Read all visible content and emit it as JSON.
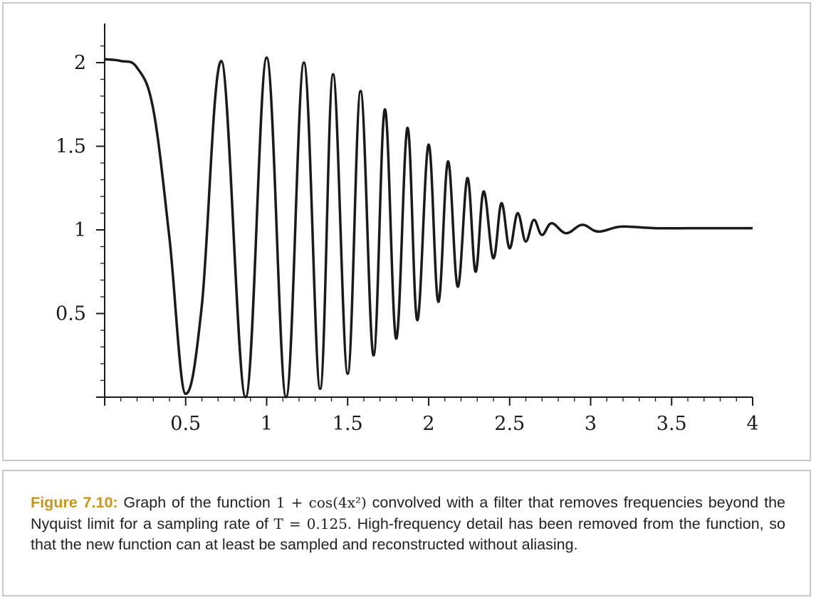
{
  "chart_data": {
    "type": "line",
    "title": "",
    "xlabel": "",
    "ylabel": "",
    "xlim": [
      0,
      4
    ],
    "ylim": [
      0,
      2.2
    ],
    "x_ticks": [
      "0.5",
      "1",
      "1.5",
      "2",
      "2.5",
      "3",
      "3.5",
      "4"
    ],
    "y_ticks": [
      "0.5",
      "1",
      "1.5",
      "2"
    ],
    "grid": false,
    "legend": "none",
    "line_color": "#1a1a1a",
    "series": [
      {
        "x": [
          0,
          0.1,
          0.2,
          0.3,
          0.4,
          0.5,
          0.6,
          0.72,
          0.87,
          1.0,
          1.12,
          1.23,
          1.33,
          1.41,
          1.5,
          1.58,
          1.66,
          1.73,
          1.8,
          1.87,
          1.93,
          2.0,
          2.06,
          2.12,
          2.18,
          2.24,
          2.29,
          2.34,
          2.4,
          2.45,
          2.5,
          2.55,
          2.6,
          2.65,
          2.7,
          2.76,
          2.85,
          2.95,
          3.05,
          3.2,
          3.4,
          3.6,
          3.8,
          4.0
        ],
        "y": [
          2.02,
          2.01,
          1.97,
          1.72,
          0.95,
          0.02,
          0.55,
          2.01,
          0.0,
          2.03,
          0.0,
          2.0,
          0.05,
          1.93,
          0.14,
          1.83,
          0.25,
          1.72,
          0.35,
          1.61,
          0.46,
          1.51,
          0.57,
          1.41,
          0.66,
          1.31,
          0.75,
          1.23,
          0.83,
          1.16,
          0.89,
          1.1,
          0.93,
          1.06,
          0.97,
          1.04,
          0.98,
          1.03,
          0.99,
          1.02,
          1.01,
          1.01,
          1.01,
          1.01
        ]
      }
    ]
  },
  "caption": {
    "label": "Figure 7.10:",
    "text_1": " Graph of the function ",
    "formula_1": "1 + cos(4x²)",
    "text_2": " convolved with a filter that removes frequencies beyond the Nyquist limit for a sampling rate of ",
    "formula_2": "T = 0.125",
    "text_3": ". High-frequency detail has been removed from the function, so that the new function can at least be sampled and reconstructed without aliasing."
  }
}
